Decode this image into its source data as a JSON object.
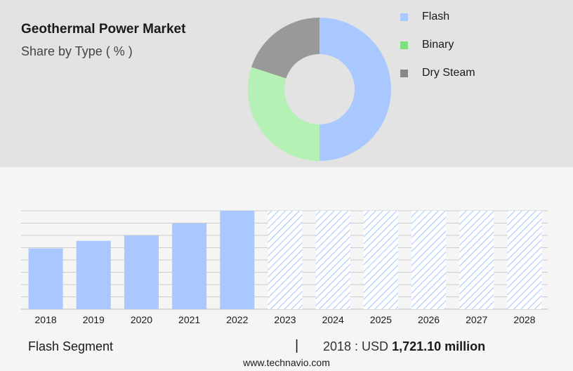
{
  "header": {
    "title": "Geothermal Power Market",
    "subtitle": "Share by Type ( % )"
  },
  "chart_data": [
    {
      "type": "pie",
      "variant": "donut",
      "legend_position": "right",
      "slices": [
        {
          "label": "Flash",
          "value": 50,
          "color": "#a8c8ff"
        },
        {
          "label": "Binary",
          "value": 30,
          "color": "#b5f0b5"
        },
        {
          "label": "Dry Steam",
          "value": 20,
          "color": "#999999"
        }
      ],
      "legend": [
        {
          "label": "Flash",
          "color": "#a8c8ff"
        },
        {
          "label": "Binary",
          "color": "#7ee07e"
        },
        {
          "label": "Dry Steam",
          "color": "#888888"
        }
      ]
    },
    {
      "type": "bar",
      "categories": [
        "2018",
        "2019",
        "2020",
        "2021",
        "2022",
        "2023",
        "2024",
        "2025",
        "2026",
        "2027",
        "2028"
      ],
      "values": [
        1721.1,
        1830,
        1905,
        2080,
        2260,
        null,
        null,
        null,
        null,
        null,
        null
      ],
      "forecast_categories": [
        "2023",
        "2024",
        "2025",
        "2026",
        "2027",
        "2028"
      ],
      "bar_color": "#a8c8ff",
      "forecast_pattern": "diagonal-hatch",
      "grid": true,
      "ylim": [
        850,
        2260
      ]
    }
  ],
  "footer": {
    "segment": "Flash Segment",
    "divider": "|",
    "year_label": "2018 : USD",
    "value": "1,721.10 million",
    "website": "www.technavio.com"
  }
}
